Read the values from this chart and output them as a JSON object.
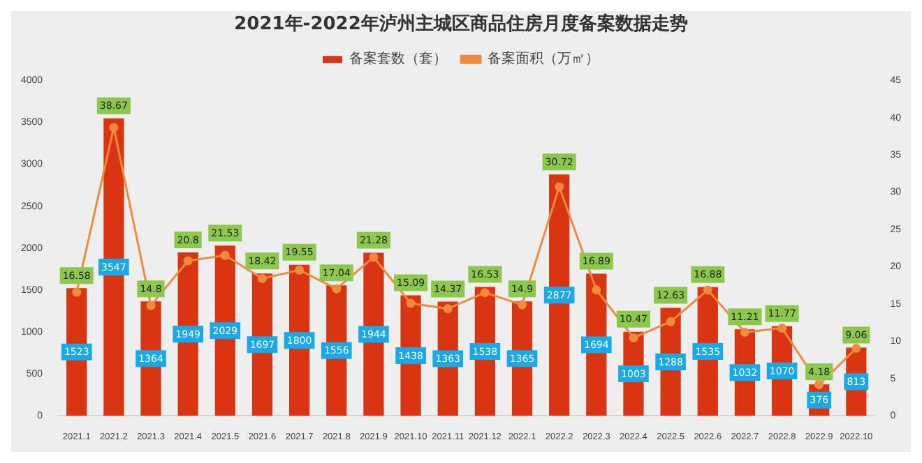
{
  "chart_data": {
    "type": "bar",
    "title": "2021年-2022年泸州主城区商品住房月度备案数据走势",
    "categories": [
      "2021.1",
      "2021.2",
      "2021.3",
      "2021.4",
      "2021.5",
      "2021.6",
      "2021.7",
      "2021.8",
      "2021.9",
      "2021.10",
      "2021.11",
      "2021.12",
      "2022.1",
      "2022.2",
      "2022.3",
      "2022.4",
      "2022.5",
      "2022.6",
      "2022.7",
      "2022.8",
      "2022.9",
      "2022.10"
    ],
    "series": [
      {
        "name": "备案套数（套）",
        "color": "#d93512",
        "values": [
          1523,
          3547,
          1364,
          1949,
          2029,
          1697,
          1800,
          1556,
          1944,
          1438,
          1363,
          1538,
          1365,
          2877,
          1694,
          1003,
          1288,
          1535,
          1032,
          1070,
          376,
          813
        ]
      },
      {
        "name": "备案面积（万㎡）",
        "type": "line",
        "axis": "y2",
        "color": "#f08a3c",
        "values": [
          16.58,
          38.67,
          14.8,
          20.8,
          21.53,
          18.42,
          19.55,
          17.04,
          21.28,
          15.09,
          14.37,
          16.53,
          14.9,
          30.72,
          16.89,
          10.47,
          12.63,
          16.88,
          11.21,
          11.77,
          4.18,
          9.06
        ]
      }
    ],
    "ylim": [
      0,
      4000
    ],
    "yticks": [
      0,
      500,
      1000,
      1500,
      2000,
      2500,
      3000,
      3500,
      4000
    ],
    "y2lim": [
      0,
      45
    ],
    "y2ticks": [
      0,
      5,
      10,
      15,
      20,
      25,
      30,
      35,
      40,
      45
    ],
    "data_labels": true,
    "legend": "top",
    "grid": false,
    "marker": "circle",
    "line_style": "solid"
  }
}
